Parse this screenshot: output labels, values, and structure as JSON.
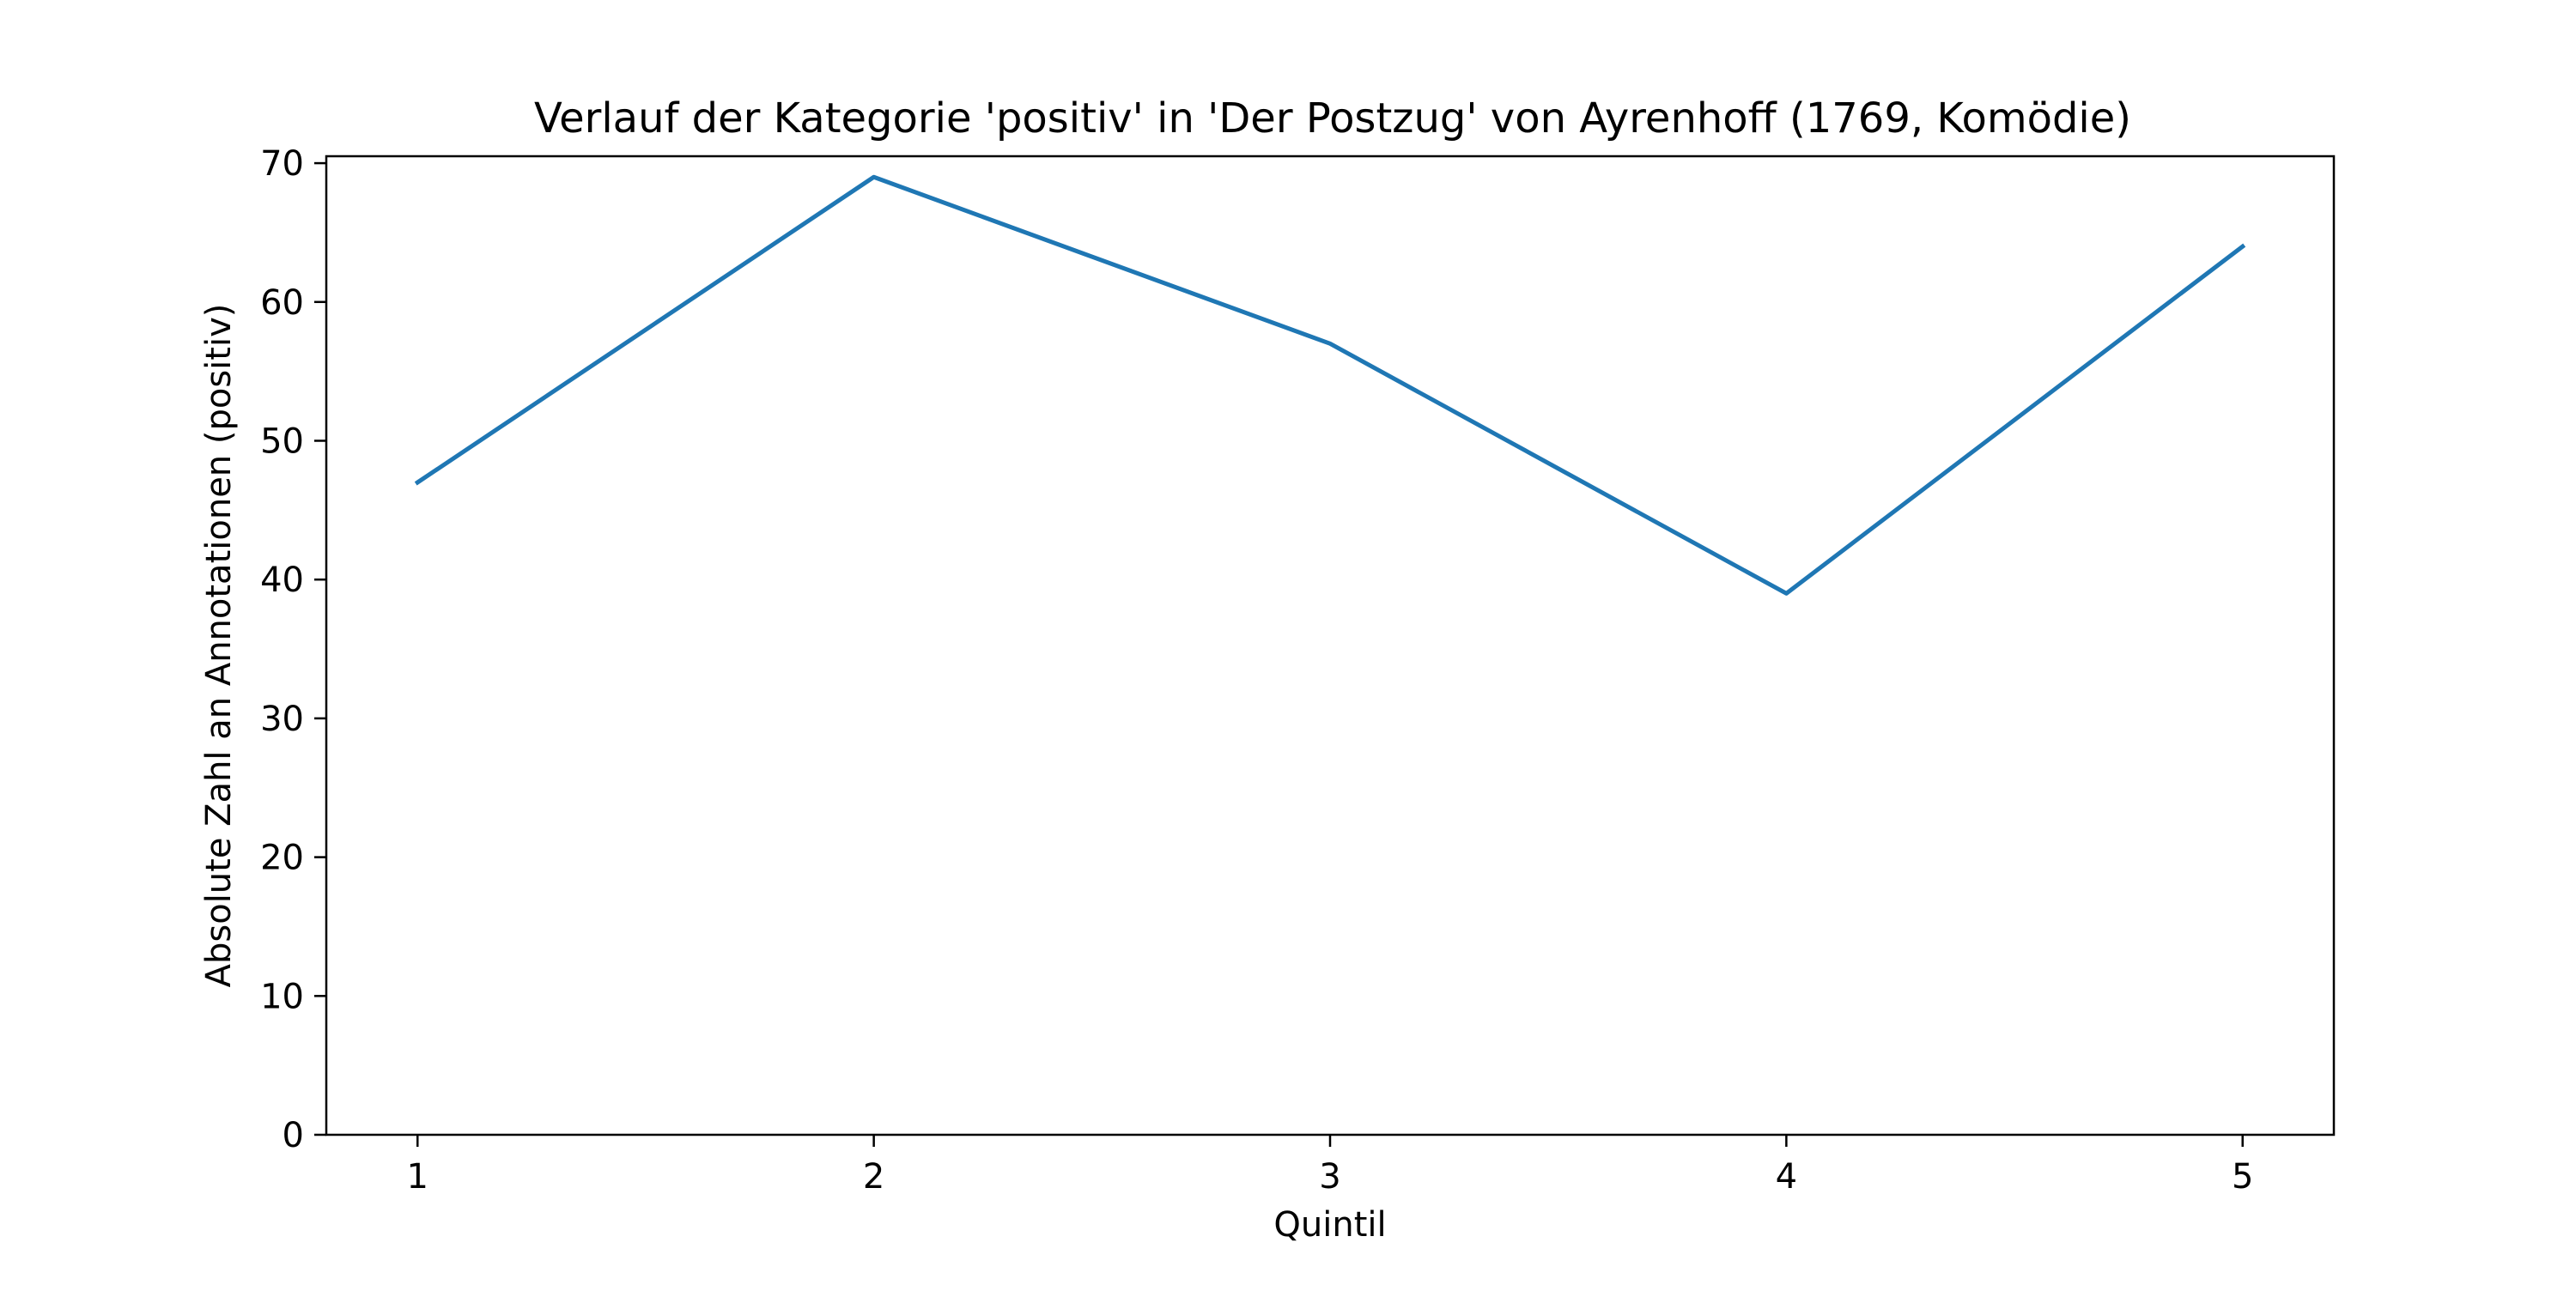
{
  "chart_data": {
    "type": "line",
    "title": "Verlauf der Kategorie 'positiv' in 'Der Postzug' von Ayrenhoff (1769, Komödie)",
    "xlabel": "Quintil",
    "ylabel": "Absolute Zahl an Annotationen (positiv)",
    "x": [
      1,
      2,
      3,
      4,
      5
    ],
    "x_ticks": [
      "1",
      "2",
      "3",
      "4",
      "5"
    ],
    "y_ticks": [
      "0",
      "10",
      "20",
      "30",
      "40",
      "50",
      "60",
      "70"
    ],
    "series": [
      {
        "values": [
          47,
          69,
          57,
          39,
          64
        ],
        "color": "#1f77b4"
      }
    ],
    "xlim": [
      0.8,
      5.2
    ],
    "ylim": [
      0,
      70.5
    ],
    "grid": false,
    "legend": "none"
  }
}
